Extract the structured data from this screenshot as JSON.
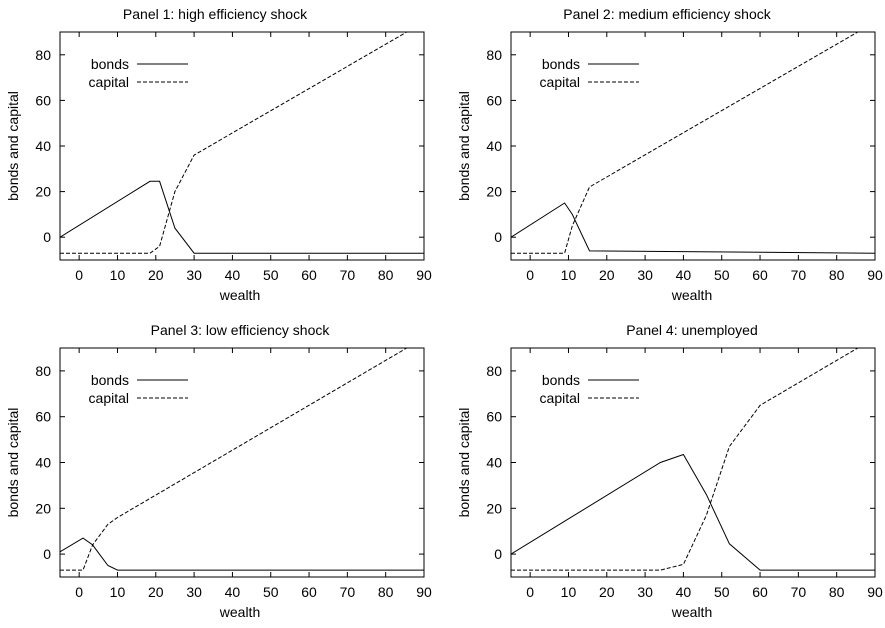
{
  "chart_data": [
    {
      "type": "line",
      "title": "Panel 1: high efficiency shock",
      "xlabel": "wealth",
      "ylabel": "bonds and capital",
      "xlim": [
        -5,
        90
      ],
      "ylim": [
        -10,
        90
      ],
      "xticks": [
        "0",
        "10",
        "20",
        "30",
        "40",
        "50",
        "60",
        "70",
        "80",
        "90"
      ],
      "yticks": [
        "0",
        "20",
        "40",
        "60",
        "80"
      ],
      "legend": "top-left",
      "series": [
        {
          "name": "bonds",
          "style": "solid",
          "x": [
            -5,
            18.5,
            21,
            25,
            30,
            90
          ],
          "y": [
            0,
            24.5,
            24.5,
            4,
            -7,
            -7
          ]
        },
        {
          "name": "capital",
          "style": "dashed",
          "x": [
            -5,
            18.5,
            21,
            25,
            30,
            85.5
          ],
          "y": [
            -7,
            -7,
            -4,
            20,
            36,
            90
          ]
        }
      ]
    },
    {
      "type": "line",
      "title": "Panel 2: medium efficiency shock",
      "xlabel": "wealth",
      "ylabel": "bonds and capital",
      "xlim": [
        -5,
        90
      ],
      "ylim": [
        -10,
        90
      ],
      "xticks": [
        "0",
        "10",
        "20",
        "30",
        "40",
        "50",
        "60",
        "70",
        "80",
        "90"
      ],
      "yticks": [
        "0",
        "20",
        "40",
        "60",
        "80"
      ],
      "legend": "top-left",
      "series": [
        {
          "name": "bonds",
          "style": "solid",
          "x": [
            -5,
            9,
            11,
            15.5,
            90
          ],
          "y": [
            0,
            15,
            10,
            -6,
            -7
          ]
        },
        {
          "name": "capital",
          "style": "dashed",
          "x": [
            -5,
            9,
            11,
            15.5,
            85.5
          ],
          "y": [
            -7,
            -7,
            5,
            22,
            90
          ]
        }
      ]
    },
    {
      "type": "line",
      "title": "Panel 3: low efficiency shock",
      "xlabel": "wealth",
      "ylabel": "bonds and capital",
      "xlim": [
        -5,
        90
      ],
      "ylim": [
        -10,
        90
      ],
      "xticks": [
        "0",
        "10",
        "20",
        "30",
        "40",
        "50",
        "60",
        "70",
        "80",
        "90"
      ],
      "yticks": [
        "0",
        "20",
        "40",
        "60",
        "80"
      ],
      "legend": "top-left",
      "series": [
        {
          "name": "bonds",
          "style": "solid",
          "x": [
            -5,
            1,
            3.5,
            7.5,
            10,
            90
          ],
          "y": [
            1,
            7,
            4,
            -5,
            -7,
            -7
          ]
        },
        {
          "name": "capital",
          "style": "dashed",
          "x": [
            -5,
            1,
            3.5,
            7.5,
            10,
            85.5
          ],
          "y": [
            -7,
            -7,
            4,
            13,
            16,
            90
          ]
        }
      ]
    },
    {
      "type": "line",
      "title": "Panel 4: unemployed",
      "xlabel": "wealth",
      "ylabel": "bonds and capital",
      "xlim": [
        -5,
        90
      ],
      "ylim": [
        -10,
        90
      ],
      "xticks": [
        "0",
        "10",
        "20",
        "30",
        "40",
        "50",
        "60",
        "70",
        "80",
        "90"
      ],
      "yticks": [
        "0",
        "20",
        "40",
        "60",
        "80"
      ],
      "legend": "top-left",
      "series": [
        {
          "name": "bonds",
          "style": "solid",
          "x": [
            -5,
            34,
            40,
            46,
            52,
            60,
            90
          ],
          "y": [
            0,
            40,
            43.5,
            26,
            4.5,
            -7,
            -7
          ]
        },
        {
          "name": "capital",
          "style": "dashed",
          "x": [
            -5,
            34,
            40,
            46,
            52,
            60,
            85.5
          ],
          "y": [
            -7,
            -7,
            -4.5,
            17,
            47,
            65,
            90
          ]
        }
      ]
    }
  ]
}
